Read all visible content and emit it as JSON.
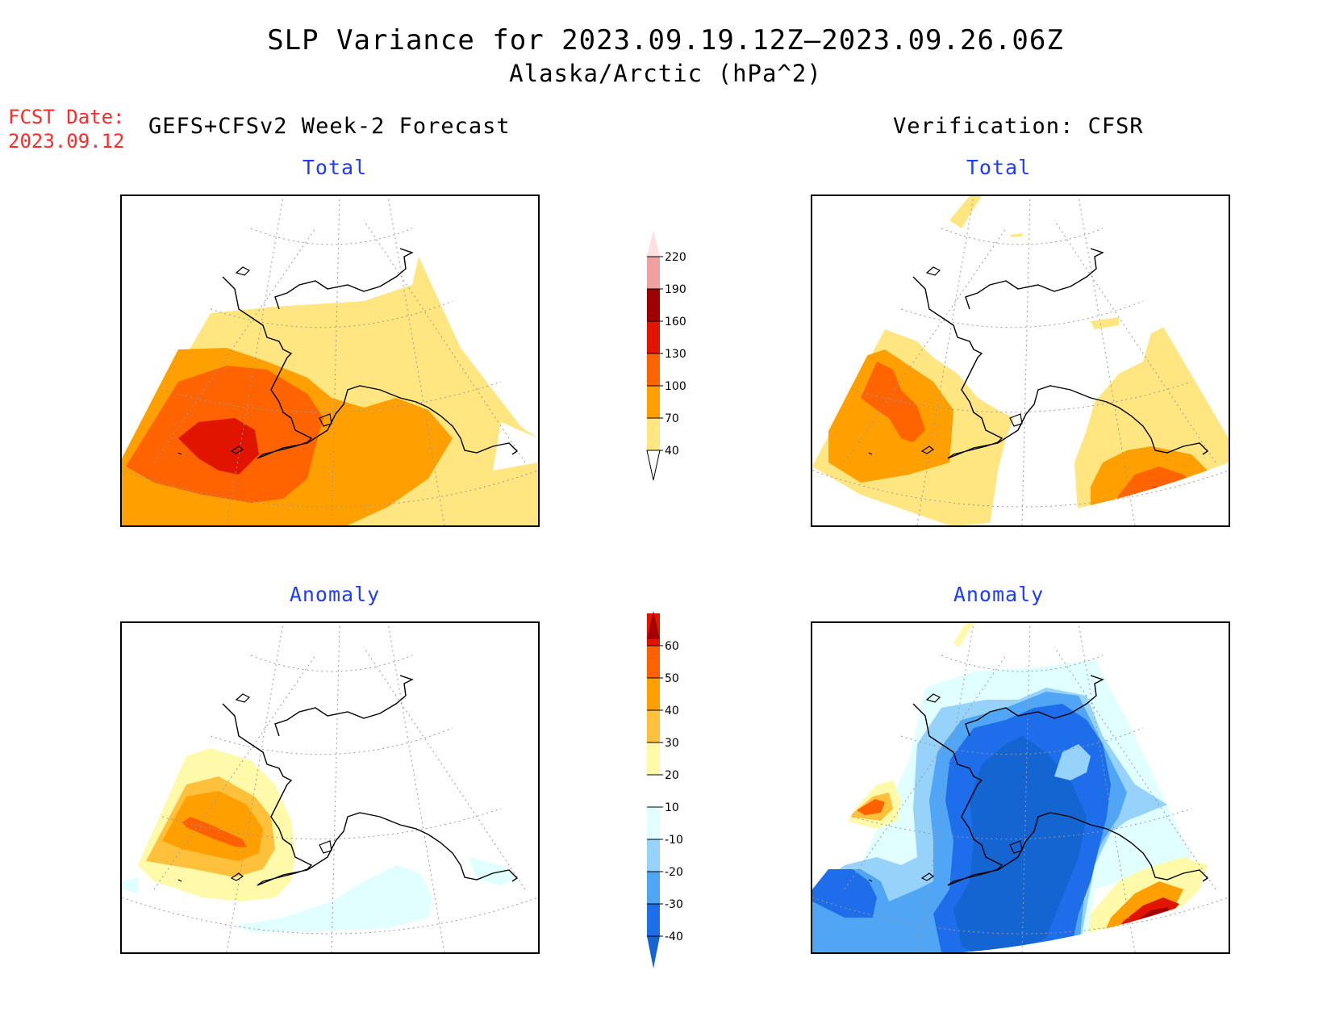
{
  "title": {
    "line1": "SLP Variance for 2023.09.19.12Z—2023.09.26.06Z",
    "line2": "Alaska/Arctic (hPa^2)"
  },
  "fcst_date": {
    "label": "FCST Date:",
    "value": "2023.09.12"
  },
  "left_header": "GEFS+CFSv2 Week-2 Forecast",
  "right_header": "Verification: CFSR",
  "panels": {
    "forecast_total": {
      "title": "Total"
    },
    "verification_total": {
      "title": "Total"
    },
    "forecast_anomaly": {
      "title": "Anomaly"
    },
    "verification_anomaly": {
      "title": "Anomaly"
    }
  },
  "colorbar_total": {
    "labels": [
      "40",
      "70",
      "100",
      "130",
      "160",
      "190",
      "220"
    ],
    "colors": [
      "#ffe680",
      "#ffa000",
      "#ff6400",
      "#e11400",
      "#a00000",
      "#f0a0a0",
      "#ffe0e0"
    ]
  },
  "colorbar_anomaly": {
    "labels": [
      "-40",
      "-30",
      "-20",
      "-10",
      "10",
      "20",
      "30",
      "40",
      "50",
      "60"
    ],
    "colors": [
      "#1464d2",
      "#1e6eeb",
      "#50a5f5",
      "#96d2fa",
      "#e1ffff",
      "#ffffff",
      "#fffaaa",
      "#ffc03c",
      "#ffa000",
      "#ff6000",
      "#e11400",
      "#a50000"
    ]
  },
  "legend_colors": {
    "c40": "#ffe680",
    "c70": "#ffa000",
    "c100": "#ff6400",
    "c130": "#e11400",
    "c160": "#a00000",
    "c190": "#f0a0a0",
    "c220": "#ffe0e0",
    "a10": "#fffaaa",
    "a20": "#ffc03c",
    "a30": "#ffa000",
    "a40": "#ff6000",
    "a50": "#e11400",
    "a60": "#a50000",
    "n10": "#e1ffff",
    "n20": "#96d2fa",
    "n30": "#50a5f5",
    "n40": "#1e6eeb"
  }
}
